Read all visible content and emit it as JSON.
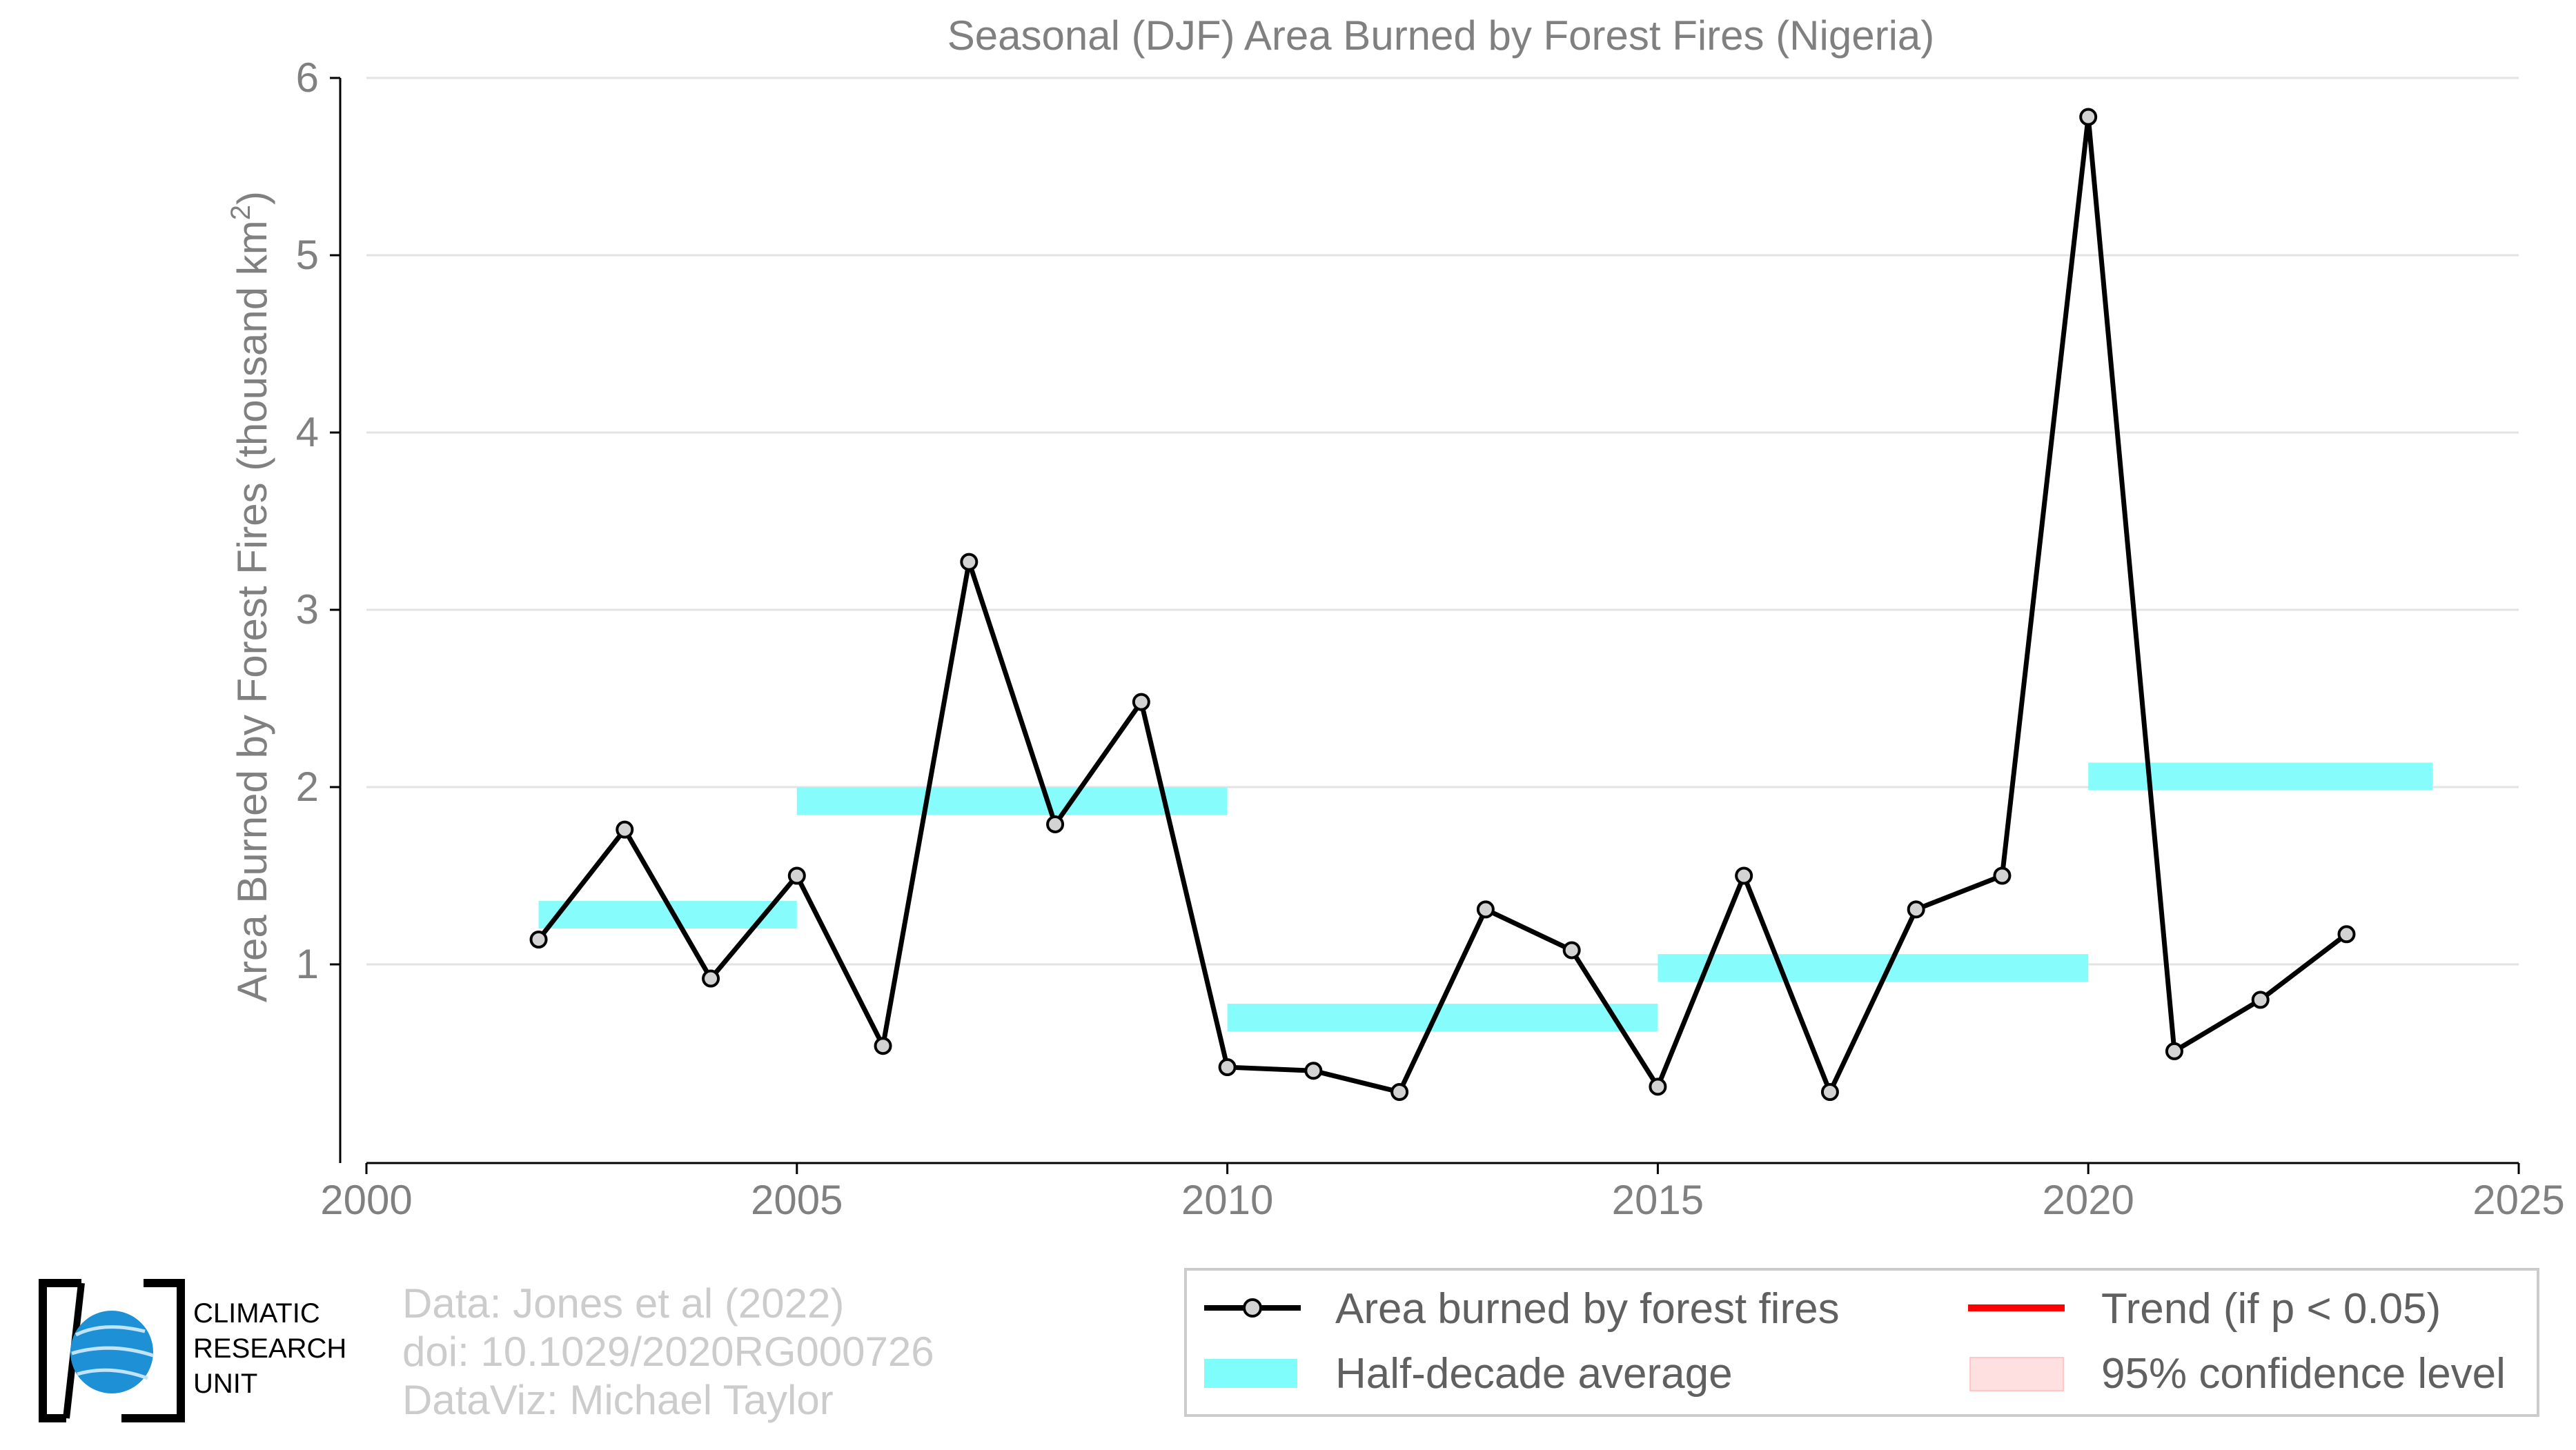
{
  "chart_data": {
    "type": "line",
    "title": "Seasonal (DJF) Area Burned by Forest Fires (Nigeria)",
    "ylabel_main": "Area Burned by Forest Fires (thousand km",
    "ylabel_sup": "2",
    "ylabel_close": ")",
    "xlabel": "",
    "xlim": [
      2000,
      2025
    ],
    "ylim": [
      0,
      6
    ],
    "x_ticks": [
      2000,
      2005,
      2010,
      2015,
      2020,
      2025
    ],
    "y_ticks": [
      1,
      2,
      3,
      4,
      5,
      6
    ],
    "grid": "horizontal",
    "legend_position": "bottom-right",
    "series": [
      {
        "name": "Area burned by forest fires",
        "color": "#000000",
        "marker_fill": "#d3d3d3",
        "x": [
          2002,
          2003,
          2004,
          2005,
          2006,
          2007,
          2008,
          2009,
          2010,
          2011,
          2012,
          2013,
          2014,
          2015,
          2016,
          2017,
          2018,
          2019,
          2020,
          2021,
          2022,
          2023
        ],
        "y": [
          1.14,
          1.76,
          0.92,
          1.5,
          0.54,
          3.27,
          1.79,
          2.48,
          0.42,
          0.4,
          0.28,
          1.31,
          1.08,
          0.31,
          1.5,
          0.28,
          1.31,
          1.5,
          5.78,
          0.51,
          0.8,
          1.17
        ]
      }
    ],
    "half_decade_average": {
      "name": "Half-decade average",
      "color": "#7ffcfc",
      "segments": [
        {
          "x0": 2002,
          "x1": 2005,
          "y": 1.28
        },
        {
          "x0": 2005,
          "x1": 2010,
          "y": 1.92
        },
        {
          "x0": 2010,
          "x1": 2015,
          "y": 0.7
        },
        {
          "x0": 2015,
          "x1": 2020,
          "y": 0.98
        },
        {
          "x0": 2020,
          "x1": 2024,
          "y": 2.06
        }
      ]
    },
    "legend": {
      "line_label": "Area burned by forest fires",
      "trend_label": "Trend (if p < 0.05)",
      "trend_color": "#ff0000",
      "avg_label": "Half-decade average",
      "ci_label": "95% confidence level",
      "ci_color": "#ffe0e0"
    }
  },
  "credits": {
    "line1": "Data: Jones et al (2022)",
    "line2": "doi: 10.1029/2020RG000726",
    "line3": "DataViz: Michael Taylor"
  },
  "logo": {
    "line1": "CLIMATIC",
    "line2": "RESEARCH",
    "line3": "UNIT",
    "globe_color": "#1e90d6"
  }
}
